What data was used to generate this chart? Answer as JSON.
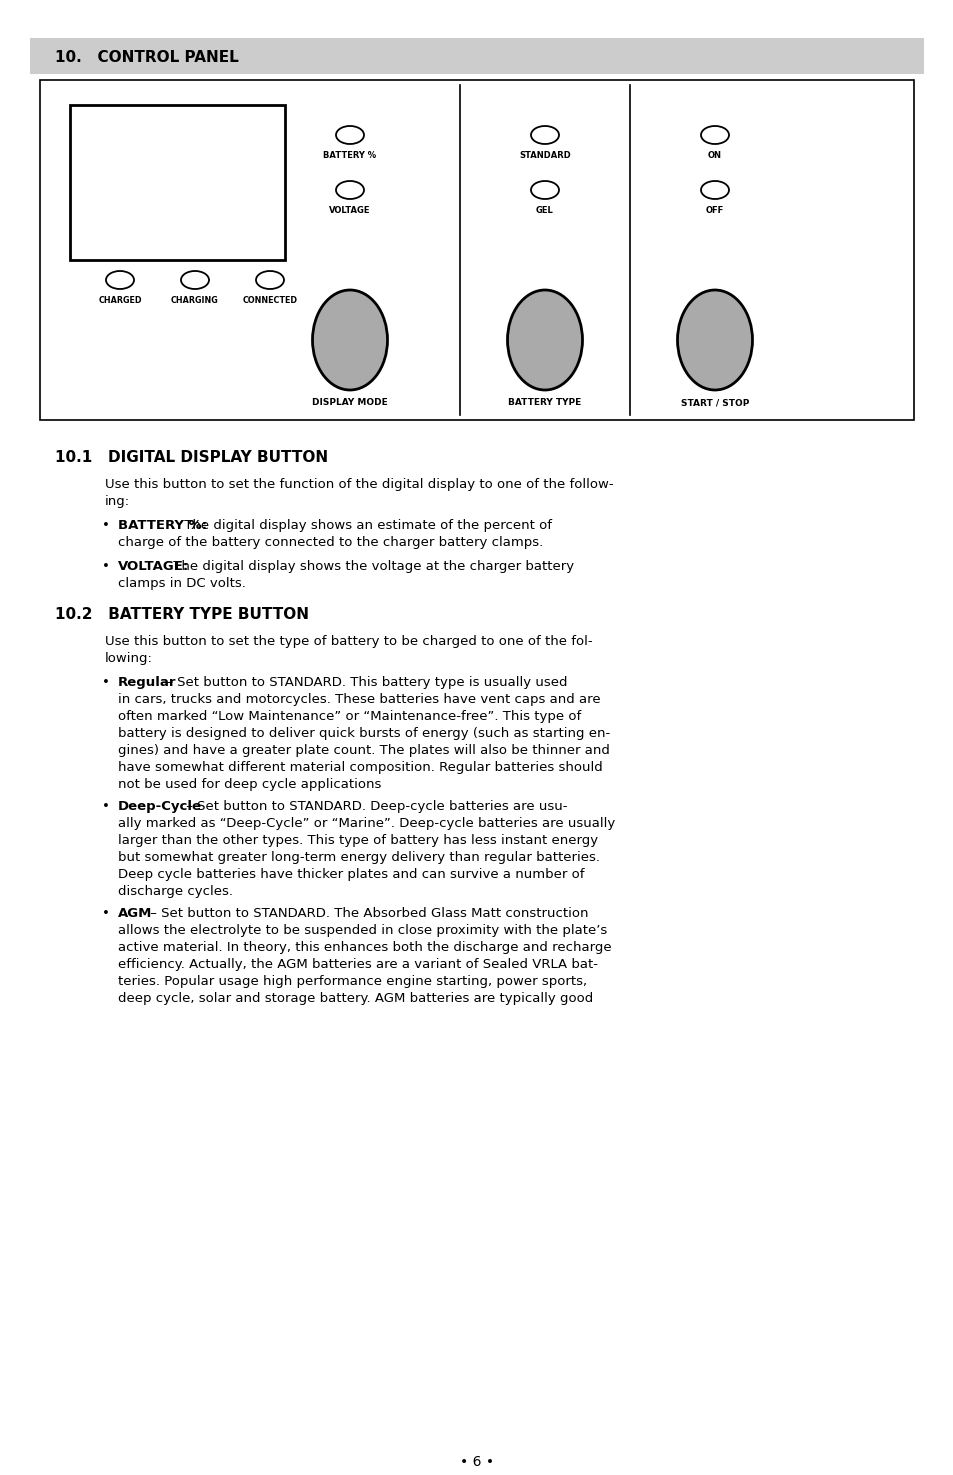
{
  "page_bg": "#ffffff",
  "header_bg": "#cccccc",
  "header_text": "10.   CONTROL PANEL",
  "section_101_title": "10.1   DIGITAL DISPLAY BUTTON",
  "section_102_title": "10.2   BATTERY TYPE BUTTON",
  "indicator_labels_row1": [
    "BATTERY %",
    "STANDARD",
    "ON"
  ],
  "indicator_labels_row2": [
    "VOLTAGE",
    "GEL",
    "OFF"
  ],
  "button_labels_bottom": [
    "CHARGED",
    "CHARGING",
    "CONNECTED"
  ],
  "big_button_labels": [
    "DISPLAY MODE",
    "BATTERY TYPE",
    "START / STOP"
  ],
  "page_number": "• 6 •"
}
